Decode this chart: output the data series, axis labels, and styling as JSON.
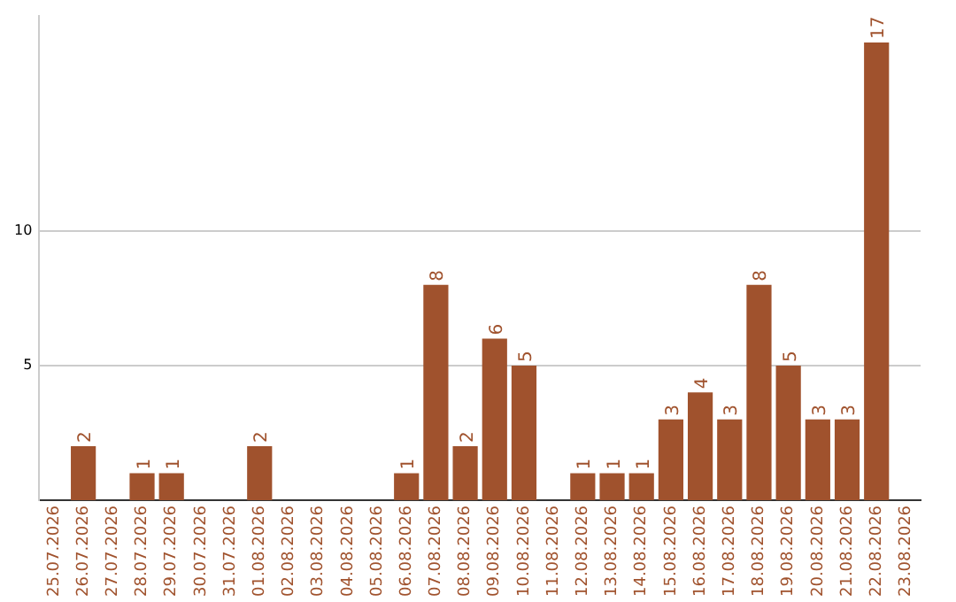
{
  "chart_data": {
    "type": "bar",
    "categories": [
      "25.07.2026",
      "26.07.2026",
      "27.07.2026",
      "28.07.2026",
      "29.07.2026",
      "30.07.2026",
      "31.07.2026",
      "01.08.2026",
      "02.08.2026",
      "03.08.2026",
      "04.08.2026",
      "05.08.2026",
      "06.08.2026",
      "07.08.2026",
      "08.08.2026",
      "09.08.2026",
      "10.08.2026",
      "11.08.2026",
      "12.08.2026",
      "13.08.2026",
      "14.08.2026",
      "15.08.2026",
      "16.08.2026",
      "17.08.2026",
      "18.08.2026",
      "19.08.2026",
      "20.08.2026",
      "21.08.2026",
      "22.08.2026",
      "23.08.2026"
    ],
    "values": [
      0,
      2,
      0,
      1,
      1,
      0,
      0,
      2,
      0,
      0,
      0,
      0,
      1,
      8,
      2,
      6,
      5,
      0,
      1,
      1,
      1,
      3,
      4,
      3,
      8,
      5,
      3,
      3,
      17,
      0
    ],
    "value_labels": [
      null,
      "2",
      null,
      "1",
      "1",
      null,
      null,
      "2",
      null,
      null,
      null,
      null,
      "1",
      "8",
      "2",
      "6",
      "5",
      null,
      "1",
      "1",
      "1",
      "3",
      "4",
      "3",
      "8",
      "5",
      "3",
      "3",
      "17",
      null
    ],
    "color": "#a0522d",
    "ylim": [
      0,
      18
    ],
    "yticks": [
      5,
      10
    ],
    "grid": "y"
  }
}
